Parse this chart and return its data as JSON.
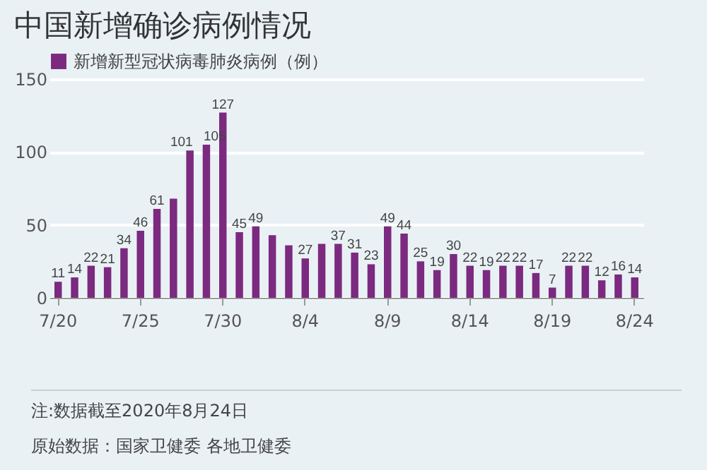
{
  "chart_data": {
    "type": "bar",
    "title": "中国新增确诊病例情况",
    "categories": [
      "7/20",
      null,
      null,
      null,
      null,
      "7/25",
      null,
      null,
      null,
      null,
      "7/30",
      null,
      null,
      null,
      null,
      "8/4",
      null,
      null,
      null,
      null,
      "8/9",
      null,
      null,
      null,
      null,
      "8/14",
      null,
      null,
      null,
      null,
      "8/19",
      null,
      null,
      null,
      null,
      "8/24"
    ],
    "series": [
      {
        "name": "新增新型冠状病毒肺炎病例（例）",
        "color": "#7b2a80",
        "values": [
          11,
          14,
          22,
          21,
          34,
          46,
          61,
          68,
          101,
          105,
          127,
          45,
          49,
          43,
          36,
          27,
          37,
          37,
          31,
          23,
          49,
          44,
          25,
          19,
          30,
          22,
          19,
          22,
          22,
          17,
          7,
          22,
          22,
          12,
          16,
          14
        ],
        "value_labels": [
          "11",
          "14",
          "22",
          "21",
          "34",
          "46",
          "61",
          null,
          "101",
          "105",
          "127",
          "45",
          "49",
          null,
          null,
          "27",
          null,
          "37",
          "31",
          "23",
          "49",
          "44",
          "25",
          "19",
          "30",
          "22",
          "19",
          "22",
          "22",
          "17",
          "7",
          "22",
          "22",
          "12",
          "16",
          "14"
        ]
      }
    ],
    "ylim": [
      0,
      150
    ],
    "yticks": [
      0,
      50,
      100,
      150
    ],
    "grid": "y",
    "legend": "top left",
    "annotations": [
      "注:数据截至2020年8月24日",
      "原始数据：国家卫健委 各地卫健委"
    ]
  }
}
